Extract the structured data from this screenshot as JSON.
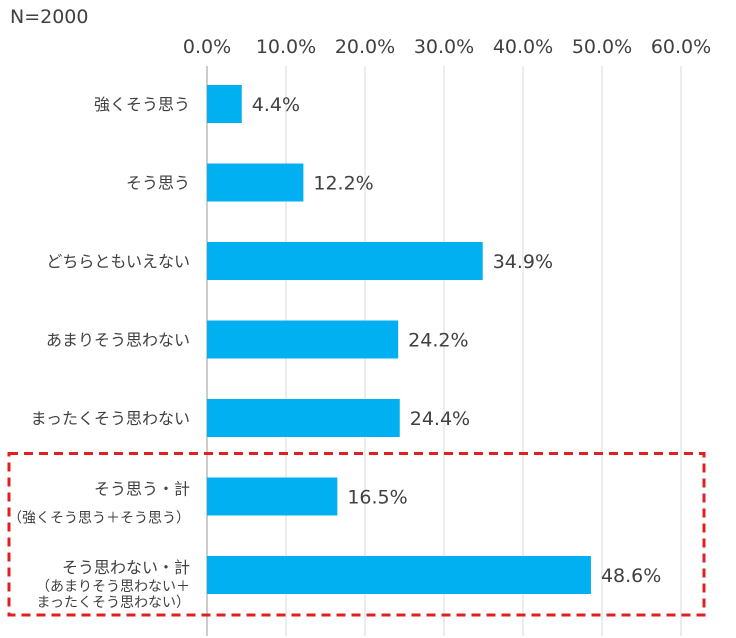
{
  "chart_data": {
    "type": "bar",
    "orientation": "horizontal",
    "sample_label": "N=2000",
    "xlim": [
      0,
      60
    ],
    "xticks": [
      "0.0%",
      "10.0%",
      "20.0%",
      "30.0%",
      "40.0%",
      "50.0%",
      "60.0%"
    ],
    "grid": true,
    "bar_color": "#00B0F0",
    "highlight_box_color": "#E02020",
    "categories": [
      {
        "label": "強くそう思う",
        "value": 4.4,
        "value_label": "4.4%"
      },
      {
        "label": "そう思う",
        "value": 12.2,
        "value_label": "12.2%"
      },
      {
        "label": "どちらともいえない",
        "value": 34.9,
        "value_label": "34.9%"
      },
      {
        "label": "あまりそう思わない",
        "value": 24.2,
        "value_label": "24.2%"
      },
      {
        "label": "まったくそう思わない",
        "value": 24.4,
        "value_label": "24.4%"
      },
      {
        "label": "そう思う・計",
        "sublabel": [
          "（強くそう思う＋そう思う）"
        ],
        "value": 16.5,
        "value_label": "16.5%"
      },
      {
        "label": "そう思わない・計",
        "sublabel": [
          "（あまりそう思わない＋",
          "まったくそう思わない）"
        ],
        "value": 48.6,
        "value_label": "48.6%"
      }
    ],
    "highlighted_categories": [
      5,
      6
    ]
  }
}
